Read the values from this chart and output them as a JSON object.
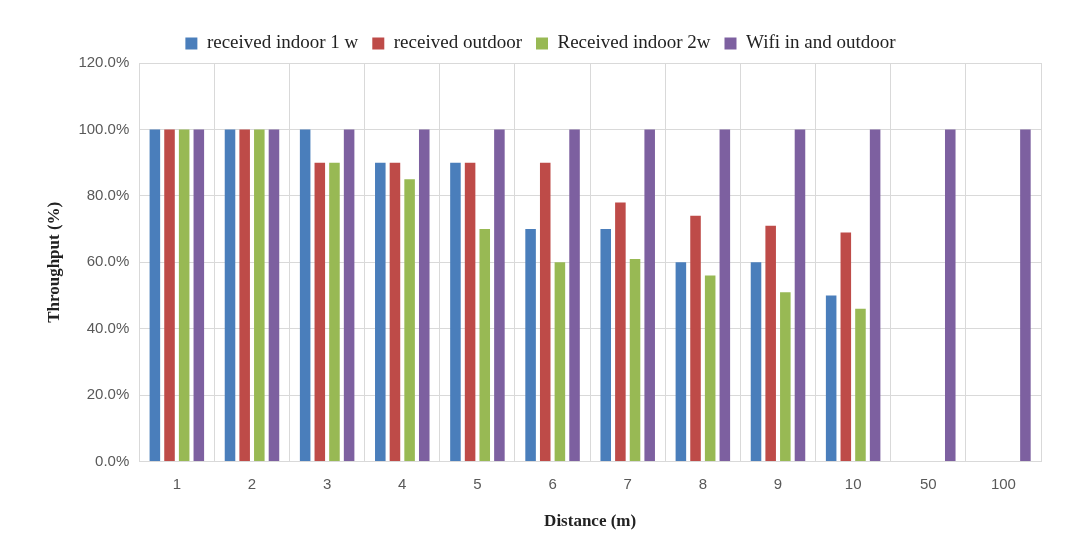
{
  "chart_data": {
    "type": "bar",
    "xlabel": "Distance (m)",
    "ylabel": "Throughput (%)",
    "categories": [
      "1",
      "2",
      "3",
      "4",
      "5",
      "6",
      "7",
      "8",
      "9",
      "10",
      "50",
      "100"
    ],
    "series": [
      {
        "name": "received indoor 1 w",
        "color": "#4a7ebb",
        "values": [
          100,
          100,
          100,
          90,
          90,
          70,
          70,
          60,
          60,
          50,
          null,
          null
        ]
      },
      {
        "name": "received outdoor",
        "color": "#be4b48",
        "values": [
          100,
          100,
          90,
          90,
          90,
          90,
          78,
          74,
          71,
          69,
          null,
          null
        ]
      },
      {
        "name": "Received indoor 2w",
        "color": "#98b954",
        "values": [
          100,
          100,
          90,
          85,
          70,
          60,
          61,
          56,
          51,
          46,
          null,
          null
        ]
      },
      {
        "name": "Wifi in and outdoor",
        "color": "#7d60a0",
        "values": [
          100,
          100,
          100,
          100,
          100,
          100,
          100,
          100,
          100,
          100,
          100,
          100
        ]
      }
    ],
    "ylim": [
      0,
      120
    ],
    "yticks": [
      {
        "value": 0,
        "label": "0.0%"
      },
      {
        "value": 20,
        "label": "20.0%"
      },
      {
        "value": 40,
        "label": "40.0%"
      },
      {
        "value": 60,
        "label": "60.0%"
      },
      {
        "value": 80,
        "label": "80.0%"
      },
      {
        "value": 100,
        "label": "100.0%"
      },
      {
        "value": 120,
        "label": "120.0%"
      }
    ],
    "grid": true,
    "legend": "top"
  }
}
